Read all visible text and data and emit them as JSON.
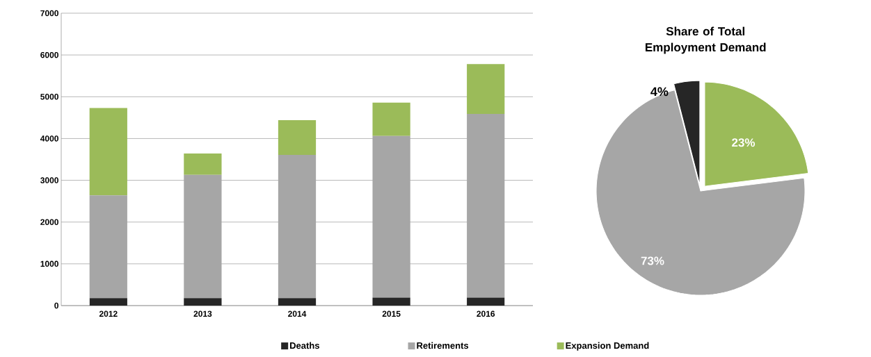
{
  "chart_data": [
    {
      "type": "bar",
      "stacked": true,
      "categories": [
        "2012",
        "2013",
        "2014",
        "2015",
        "2016"
      ],
      "series": [
        {
          "name": "Deaths",
          "color": "#262626",
          "values": [
            180,
            180,
            180,
            190,
            190
          ]
        },
        {
          "name": "Retirements",
          "color": "#a6a6a6",
          "values": [
            2460,
            2950,
            3430,
            3870,
            4400
          ]
        },
        {
          "name": "Expansion Demand",
          "color": "#9bbb59",
          "values": [
            2090,
            510,
            830,
            800,
            1190
          ]
        }
      ],
      "ylim": [
        0,
        7000
      ],
      "yticks": [
        0,
        1000,
        2000,
        3000,
        4000,
        5000,
        6000,
        7000
      ],
      "grid": "y",
      "legend": "bottom"
    },
    {
      "type": "pie",
      "title": "Share of Total Employment Demand",
      "categories": [
        null,
        null,
        null
      ],
      "values": [
        23,
        73,
        4
      ],
      "colors": [
        "#9bbb59",
        "#a6a6a6",
        "#262626"
      ],
      "value_labels": [
        "23%",
        "73%",
        "4%"
      ]
    }
  ]
}
